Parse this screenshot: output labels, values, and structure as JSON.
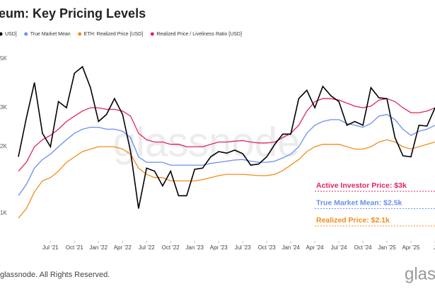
{
  "chart_data": {
    "type": "line",
    "title": "eum: Key Pricing Levels",
    "yscale": "log",
    "grid": false,
    "legend": "top-left",
    "ylim": [
      750,
      5300
    ],
    "yticks": [
      {
        "value": 5000,
        "label": "5K"
      },
      {
        "value": 3000,
        "label": "3K"
      },
      {
        "value": 2000,
        "label": "2K"
      },
      {
        "value": 1000,
        "label": "1K"
      }
    ],
    "xlim": [
      "2021-03",
      "2025-07"
    ],
    "xticks": [
      {
        "value": "2021-07",
        "label": "Jul '21"
      },
      {
        "value": "2021-10",
        "label": "Oct '21"
      },
      {
        "value": "2022-01",
        "label": "Jan '22"
      },
      {
        "value": "2022-04",
        "label": "Apr '22"
      },
      {
        "value": "2022-07",
        "label": "Jul '22"
      },
      {
        "value": "2022-10",
        "label": "Oct '22"
      },
      {
        "value": "2023-01",
        "label": "Jan '23"
      },
      {
        "value": "2023-04",
        "label": "Apr '23"
      },
      {
        "value": "2023-07",
        "label": "Jul '23"
      },
      {
        "value": "2023-10",
        "label": "Oct '23"
      },
      {
        "value": "2024-01",
        "label": "Jan '24"
      },
      {
        "value": "2024-04",
        "label": "Apr '24"
      },
      {
        "value": "2024-07",
        "label": "Jul '24"
      },
      {
        "value": "2024-10",
        "label": "Oct '24"
      },
      {
        "value": "2025-01",
        "label": "Jan '25"
      },
      {
        "value": "2025-04",
        "label": "Apr '25"
      },
      {
        "value": "2025-07",
        "label": "J"
      }
    ],
    "x": [
      "2021-03",
      "2021-04",
      "2021-05",
      "2021-06",
      "2021-07",
      "2021-08",
      "2021-09",
      "2021-10",
      "2021-11",
      "2021-12",
      "2022-01",
      "2022-02",
      "2022-03",
      "2022-04",
      "2022-05",
      "2022-06",
      "2022-07",
      "2022-08",
      "2022-09",
      "2022-10",
      "2022-11",
      "2022-12",
      "2023-01",
      "2023-02",
      "2023-03",
      "2023-04",
      "2023-05",
      "2023-06",
      "2023-07",
      "2023-08",
      "2023-09",
      "2023-10",
      "2023-11",
      "2023-12",
      "2024-01",
      "2024-02",
      "2024-03",
      "2024-04",
      "2024-05",
      "2024-06",
      "2024-07",
      "2024-08",
      "2024-09",
      "2024-10",
      "2024-11",
      "2024-12",
      "2025-01",
      "2025-02",
      "2025-03",
      "2025-04",
      "2025-05",
      "2025-06",
      "2025-07"
    ],
    "series": [
      {
        "name": "USD]",
        "color": "#000000",
        "values": [
          1800,
          2700,
          3900,
          2300,
          2000,
          3200,
          3000,
          4300,
          4600,
          3700,
          2600,
          2800,
          3300,
          2800,
          1900,
          1050,
          1600,
          1550,
          1330,
          1550,
          1200,
          1200,
          1580,
          1600,
          1800,
          1900,
          1870,
          1930,
          1860,
          1650,
          1670,
          1800,
          2050,
          2280,
          2280,
          3300,
          3600,
          3000,
          3750,
          3400,
          3200,
          2500,
          2600,
          2500,
          3700,
          3330,
          3300,
          2200,
          1820,
          1800,
          2500,
          2480,
          3000
        ]
      },
      {
        "name": "True Market Mean",
        "color": "#6b8ff0",
        "values": [
          1200,
          1350,
          1600,
          1750,
          1850,
          2000,
          2150,
          2300,
          2400,
          2450,
          2450,
          2400,
          2400,
          2350,
          2200,
          1800,
          1700,
          1700,
          1700,
          1650,
          1650,
          1650,
          1650,
          1650,
          1680,
          1700,
          1720,
          1740,
          1750,
          1720,
          1700,
          1700,
          1720,
          1780,
          1850,
          2000,
          2300,
          2500,
          2600,
          2650,
          2650,
          2550,
          2500,
          2450,
          2550,
          2750,
          2800,
          2650,
          2400,
          2250,
          2350,
          2400,
          2500
        ]
      },
      {
        "name": "ETH: Realized Price [USD]",
        "color": "#f28c1c",
        "values": [
          950,
          1050,
          1250,
          1400,
          1450,
          1550,
          1700,
          1800,
          1900,
          1950,
          2000,
          2000,
          2000,
          1950,
          1850,
          1600,
          1500,
          1450,
          1450,
          1400,
          1400,
          1400,
          1400,
          1420,
          1450,
          1480,
          1500,
          1500,
          1500,
          1490,
          1480,
          1480,
          1500,
          1560,
          1650,
          1750,
          1900,
          2000,
          2050,
          2050,
          2050,
          2000,
          1950,
          1950,
          2000,
          2100,
          2150,
          2100,
          2000,
          1950,
          2000,
          2050,
          2100
        ]
      },
      {
        "name": "Realized Price / Liveliness Ratio [USD]",
        "color": "#e0245e",
        "values": [
          1550,
          1700,
          2000,
          2150,
          2250,
          2400,
          2600,
          2750,
          2900,
          3000,
          3000,
          2950,
          2950,
          2900,
          2750,
          2300,
          2150,
          2100,
          2100,
          2050,
          2050,
          2000,
          2000,
          2000,
          2050,
          2100,
          2100,
          2120,
          2130,
          2100,
          2080,
          2080,
          2100,
          2200,
          2300,
          2500,
          2900,
          3200,
          3300,
          3300,
          3250,
          3150,
          3050,
          3000,
          3050,
          3250,
          3300,
          3200,
          3000,
          2850,
          2850,
          2900,
          3000
        ]
      }
    ],
    "annotations": [
      {
        "text": "Active Investor Price: $3k",
        "color": "#e0245e"
      },
      {
        "text": "True Market Mean: $2.5k",
        "color": "#6b8ff0"
      },
      {
        "text": "Realized Price: $2.1k",
        "color": "#f28c1c"
      }
    ],
    "watermark": "glassnode",
    "footer": "glassnode. All Rights Reserved.",
    "logo": "glassn"
  }
}
